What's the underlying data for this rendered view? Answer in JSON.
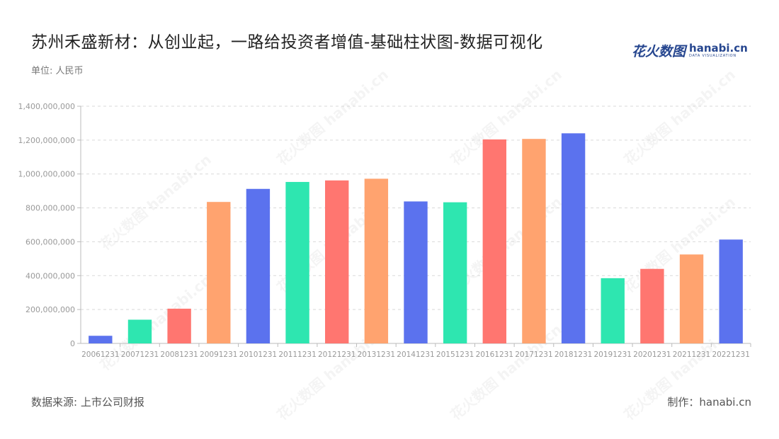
{
  "header": {
    "title": "苏州禾盛新材：从创业起，一路给投资者增值-基础柱状图-数据可视化",
    "unit": "单位: 人民币"
  },
  "logo": {
    "cn": "花火数图",
    "en": "hanabi.cn",
    "en_sub": "DATA VISUALIZATION"
  },
  "footer": {
    "source": "数据来源: 上市公司财报",
    "credit": "制作：hanabi.cn"
  },
  "watermark_text": "花火数图 hanabi.cn",
  "colors": {
    "blue": "#5b72ee",
    "green": "#2ee6b0",
    "red": "#ff7670",
    "orange": "#ffa36f"
  },
  "chart_data": {
    "type": "bar",
    "categories": [
      "20061231",
      "20071231",
      "20081231",
      "20091231",
      "20101231",
      "20111231",
      "20121231",
      "20131231",
      "20141231",
      "20151231",
      "20161231",
      "20171231",
      "20181231",
      "20191231",
      "20201231",
      "20211231",
      "20221231"
    ],
    "values": [
      45000000,
      140000000,
      205000000,
      835000000,
      912000000,
      953000000,
      962000000,
      972000000,
      838000000,
      833000000,
      1204000000,
      1207000000,
      1240000000,
      385000000,
      440000000,
      525000000,
      613000000
    ],
    "bar_colors": [
      "#5b72ee",
      "#2ee6b0",
      "#ff7670",
      "#ffa36f",
      "#5b72ee",
      "#2ee6b0",
      "#ff7670",
      "#ffa36f",
      "#5b72ee",
      "#2ee6b0",
      "#ff7670",
      "#ffa36f",
      "#5b72ee",
      "#2ee6b0",
      "#ff7670",
      "#ffa36f",
      "#5b72ee"
    ],
    "yticks": [
      0,
      200000000,
      400000000,
      600000000,
      800000000,
      1000000000,
      1200000000,
      1400000000
    ],
    "ytick_labels": [
      "0",
      "200,000,000",
      "400,000,000",
      "600,000,000",
      "800,000,000",
      "1,000,000,000",
      "1,200,000,000",
      "1,400,000,000"
    ],
    "ylim": [
      0,
      1400000000
    ],
    "grid": true
  }
}
